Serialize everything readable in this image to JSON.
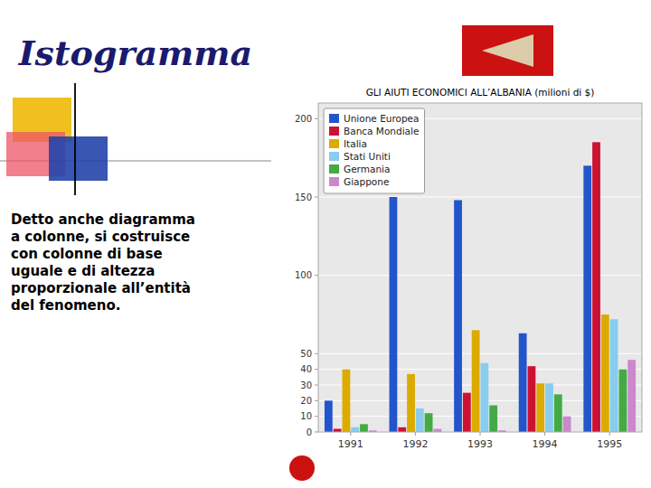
{
  "chart_data": {
    "type": "bar",
    "title": "Istogramma",
    "subtitle": "GLI AIUTI ECONOMICI ALL’ALBANIA (milioni di $)",
    "annotations": [
      "Detto anche diagramma\na colonne, si costruisce\ncon colonne di base\nuguale e di altezza\nproporzionale all’entità\ndel fenomeno."
    ],
    "categories": [
      "1991",
      "1992",
      "1993",
      "1994",
      "1995"
    ],
    "series": [
      {
        "name": "Unione Europea",
        "color": "#2255cc",
        "values": [
          20,
          150,
          148,
          63,
          170
        ]
      },
      {
        "name": "Banca Mondiale",
        "color": "#cc1133",
        "values": [
          2,
          3,
          25,
          42,
          185
        ]
      },
      {
        "name": "Italia",
        "color": "#ddaa00",
        "values": [
          40,
          37,
          65,
          31,
          75
        ]
      },
      {
        "name": "Stati Uniti",
        "color": "#88ccee",
        "values": [
          3,
          15,
          44,
          31,
          72
        ]
      },
      {
        "name": "Germania",
        "color": "#44aa44",
        "values": [
          5,
          12,
          17,
          24,
          40
        ]
      },
      {
        "name": "Giappone",
        "color": "#cc88cc",
        "values": [
          1,
          2,
          1,
          10,
          46
        ]
      }
    ],
    "ylim": [
      0,
      210
    ],
    "yticks": [
      0,
      10,
      20,
      30,
      40,
      50,
      100,
      150,
      200
    ],
    "grid": true,
    "legend": "upper left"
  }
}
